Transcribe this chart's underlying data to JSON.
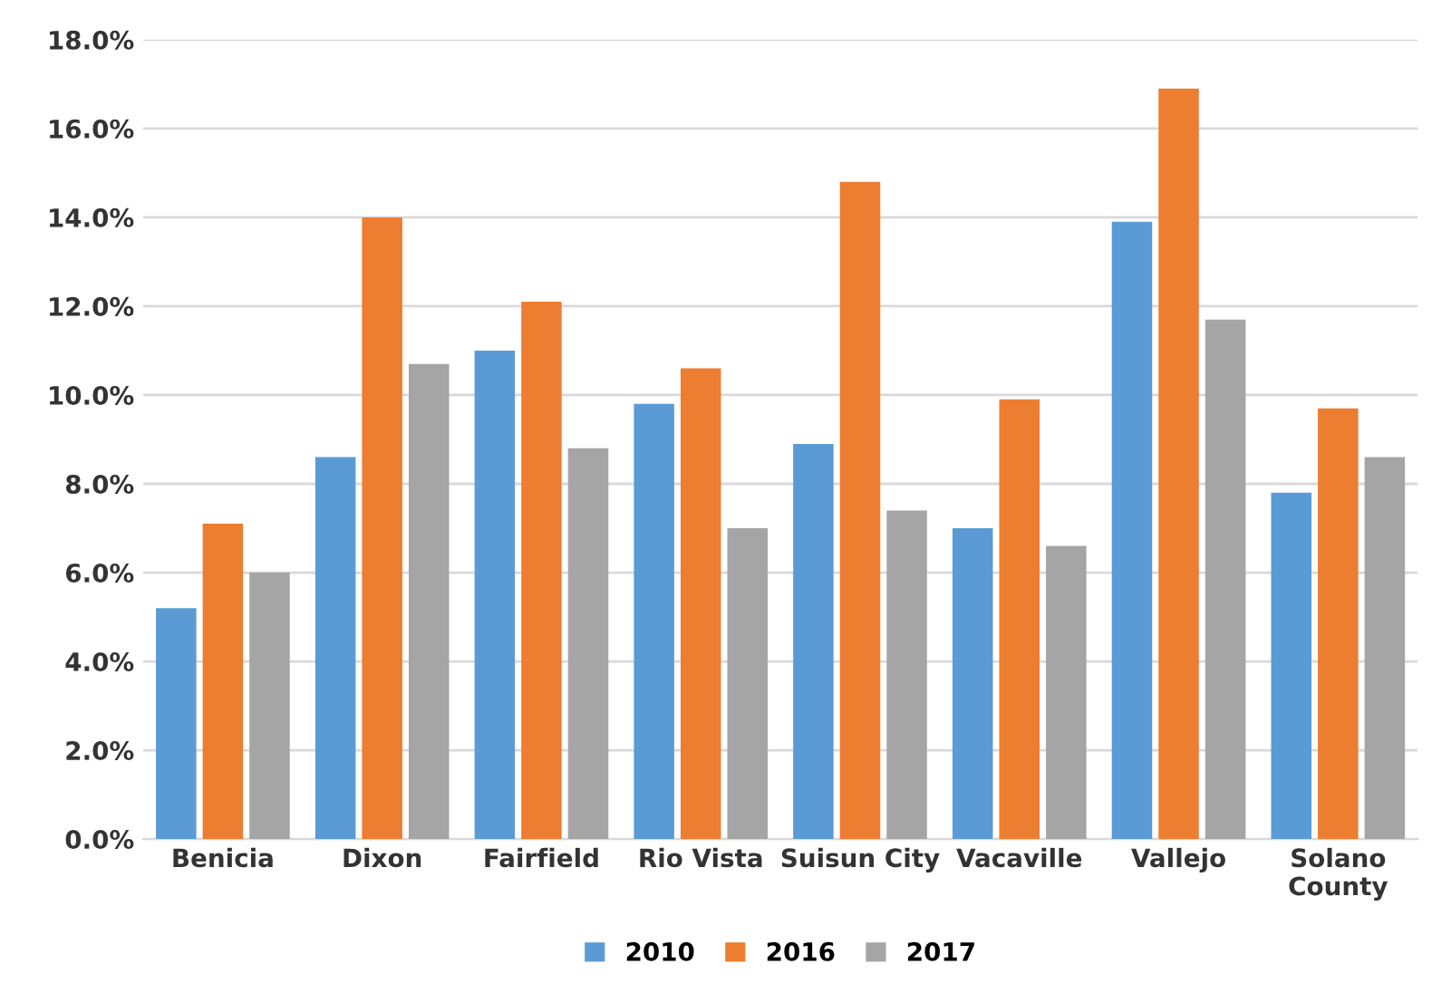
{
  "chart_data": {
    "type": "bar",
    "categories": [
      "Benicia",
      "Dixon",
      "Fairfield",
      "Rio Vista",
      "Suisun City",
      "Vacaville",
      "Vallejo",
      "Solano\nCounty"
    ],
    "series": [
      {
        "name": "2010",
        "color": "#5b9bd5",
        "values": [
          5.2,
          8.6,
          11.0,
          9.8,
          8.9,
          7.0,
          13.9,
          7.8
        ]
      },
      {
        "name": "2016",
        "color": "#ed7d31",
        "values": [
          7.1,
          14.0,
          12.1,
          10.6,
          14.8,
          9.9,
          16.9,
          9.7
        ]
      },
      {
        "name": "2017",
        "color": "#a5a5a5",
        "values": [
          6.0,
          10.7,
          8.8,
          7.0,
          7.4,
          6.6,
          11.7,
          8.6
        ]
      }
    ],
    "ylim": [
      0,
      18
    ],
    "yticks": [
      {
        "value": 0,
        "label": "0.0%"
      },
      {
        "value": 2,
        "label": "2.0%"
      },
      {
        "value": 4,
        "label": "4.0%"
      },
      {
        "value": 6,
        "label": "6.0%"
      },
      {
        "value": 8,
        "label": "8.0%"
      },
      {
        "value": 10,
        "label": "10.0%"
      },
      {
        "value": 12,
        "label": "12.0%"
      },
      {
        "value": 14,
        "label": "14.0%"
      },
      {
        "value": 16,
        "label": "16.0%"
      },
      {
        "value": 18,
        "label": "18.0%"
      }
    ],
    "grid": "y",
    "legend": "bottom"
  }
}
